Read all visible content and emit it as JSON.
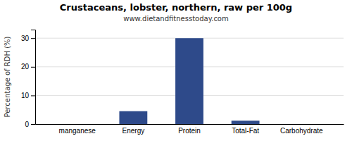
{
  "chart_data": {
    "type": "bar",
    "title": "Crustaceans, lobster, northern, raw per 100g",
    "subtitle": "www.dietandfitnesstoday.com",
    "categories": [
      "manganese",
      "Energy",
      "Protein",
      "Total-Fat",
      "Carbohydrate"
    ],
    "values": [
      0,
      4.5,
      30,
      1.2,
      0
    ],
    "color": "#2e4a8a",
    "ylabel": "Percentage of RDH (%)",
    "ylim": [
      0,
      33
    ],
    "yticks": [
      0,
      10,
      20,
      30
    ],
    "grid": true
  }
}
